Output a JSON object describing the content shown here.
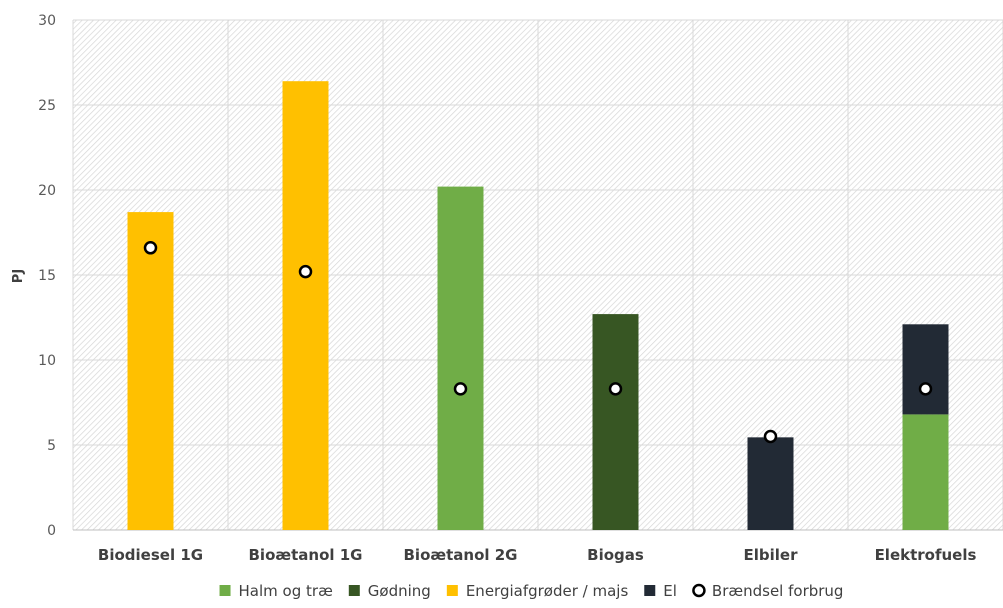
{
  "chart_data": {
    "type": "bar",
    "stacked": true,
    "title": "",
    "xlabel": "",
    "ylabel": "PJ",
    "ylim": [
      0,
      30
    ],
    "yticks": [
      "0",
      "5",
      "10",
      "15",
      "20",
      "25",
      "30"
    ],
    "categories": [
      "Biodiesel 1G",
      "Bioætanol 1G",
      "Bioætanol 2G",
      "Biogas",
      "Elbiler",
      "Elektrofuels"
    ],
    "series": [
      {
        "name": "Halm og træ",
        "color": "#70ad47",
        "values": [
          0,
          0,
          20.2,
          0,
          0,
          6.8
        ]
      },
      {
        "name": "Gødning",
        "color": "#375623",
        "values": [
          0,
          0,
          0,
          12.7,
          0,
          0
        ]
      },
      {
        "name": "Energiafgrøder / majs",
        "color": "#ffc000",
        "values": [
          18.7,
          26.4,
          0,
          0,
          0,
          0
        ]
      },
      {
        "name": "El",
        "color": "#222a35",
        "values": [
          0,
          0,
          0,
          0,
          5.45,
          5.3
        ]
      }
    ],
    "markers": {
      "name": "Brændsel forbrug",
      "values": [
        16.6,
        15.2,
        8.3,
        8.3,
        5.5,
        8.3
      ]
    },
    "grid": true,
    "legend_position": "bottom"
  }
}
